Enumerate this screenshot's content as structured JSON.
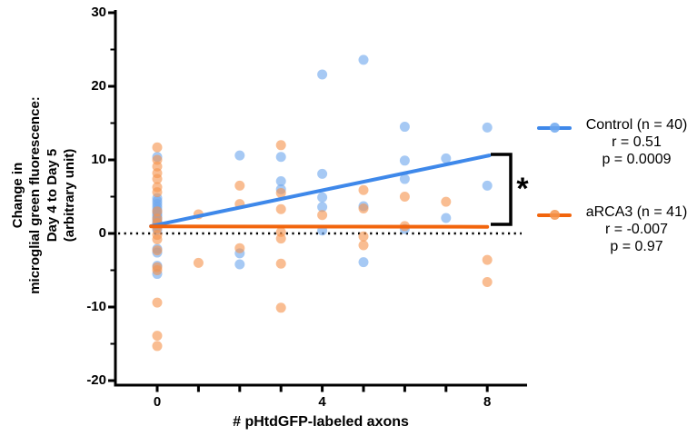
{
  "chart_data": {
    "type": "scatter",
    "title": "",
    "xlabel": "# pHtdGFP-labeled axons",
    "ylabel": "Change in microglial green fluorescence: Day 4 to Day 5 (arbitrary unit)",
    "ylabel_lines": [
      "Change in",
      "microglial green fluorescence:",
      "Day 4 to Day 5",
      "(arbitrary unit)"
    ],
    "xlim": [
      -1,
      9
    ],
    "ylim": [
      -20,
      30
    ],
    "grid": false,
    "legend_position": "right",
    "x_axis": {
      "tick_values": [
        0,
        1,
        2,
        3,
        4,
        5,
        6,
        7,
        8
      ],
      "labeled_ticks": [
        {
          "value": 0,
          "label": "0"
        },
        {
          "value": 4,
          "label": "4"
        },
        {
          "value": 8,
          "label": "8"
        }
      ]
    },
    "y_axis": {
      "major_ticks": [
        {
          "value": 30,
          "label": "30"
        },
        {
          "value": 20,
          "label": "20"
        },
        {
          "value": 10,
          "label": "10"
        },
        {
          "value": 0,
          "label": "0"
        },
        {
          "value": -10,
          "label": "-10"
        },
        {
          "value": -20,
          "label": "-20"
        }
      ],
      "minor_tick_values": [
        25,
        15,
        5,
        -5,
        -15
      ]
    },
    "zero_line": {
      "value": 0,
      "style": "dotted",
      "color": "#000000"
    },
    "series": [
      {
        "name": "Control (n = 40)",
        "stats_r": "r = 0.51",
        "stats_p": "p = 0.0009",
        "dot_color": "#6FA8EE",
        "line_color": "#3E88EA",
        "trend_line": {
          "x": [
            -0.15,
            8.05
          ],
          "y": [
            1.0,
            10.6
          ]
        },
        "points": [
          [
            0,
            10.4
          ],
          [
            0,
            4.8
          ],
          [
            0,
            4.4
          ],
          [
            0,
            4.0
          ],
          [
            0,
            3.6
          ],
          [
            0,
            3.2
          ],
          [
            0,
            2.9
          ],
          [
            0,
            2.6
          ],
          [
            0,
            2.3
          ],
          [
            0,
            2.0
          ],
          [
            0,
            1.7
          ],
          [
            0,
            1.4
          ],
          [
            0,
            1.0
          ],
          [
            0,
            0.5
          ],
          [
            0,
            -2.1
          ],
          [
            0,
            -2.6
          ],
          [
            0,
            -4.4
          ],
          [
            0,
            -5.5
          ],
          [
            2,
            10.6
          ],
          [
            2,
            -2.7
          ],
          [
            2,
            -4.2
          ],
          [
            3,
            10.4
          ],
          [
            3,
            7.1
          ],
          [
            3,
            6.0
          ],
          [
            4,
            21.6
          ],
          [
            4,
            8.1
          ],
          [
            4,
            4.9
          ],
          [
            4,
            3.6
          ],
          [
            4,
            0.4
          ],
          [
            5,
            23.6
          ],
          [
            5,
            3.7
          ],
          [
            5,
            -3.9
          ],
          [
            6,
            14.5
          ],
          [
            6,
            9.9
          ],
          [
            6,
            7.4
          ],
          [
            6,
            0.6
          ],
          [
            7,
            10.2
          ],
          [
            7,
            2.1
          ],
          [
            8,
            14.4
          ],
          [
            8,
            6.5
          ]
        ]
      },
      {
        "name": "aRCA3 (n = 41)",
        "stats_r": "r = -0.007",
        "stats_p": "p = 0.97",
        "dot_color": "#F5954F",
        "line_color": "#F2650D",
        "trend_line": {
          "x": [
            -0.15,
            8.0
          ],
          "y": [
            0.95,
            0.9
          ]
        },
        "points": [
          [
            0,
            11.7
          ],
          [
            0,
            10.0
          ],
          [
            0,
            9.1
          ],
          [
            0,
            8.2
          ],
          [
            0,
            7.4
          ],
          [
            0,
            6.3
          ],
          [
            0,
            5.6
          ],
          [
            0,
            3.0
          ],
          [
            0,
            2.0
          ],
          [
            0,
            1.4
          ],
          [
            0,
            0.7
          ],
          [
            0,
            -0.2
          ],
          [
            0,
            -0.8
          ],
          [
            0,
            -2.3
          ],
          [
            0,
            -4.6
          ],
          [
            0,
            -5.0
          ],
          [
            0,
            -9.4
          ],
          [
            0,
            -13.9
          ],
          [
            0,
            -15.3
          ],
          [
            1,
            2.6
          ],
          [
            1,
            -4.0
          ],
          [
            2,
            6.5
          ],
          [
            2,
            4.0
          ],
          [
            2,
            -2.0
          ],
          [
            3,
            12.0
          ],
          [
            3,
            5.5
          ],
          [
            3,
            3.3
          ],
          [
            3,
            0.2
          ],
          [
            3,
            -0.7
          ],
          [
            3,
            -4.1
          ],
          [
            3,
            -10.1
          ],
          [
            4,
            2.5
          ],
          [
            5,
            5.9
          ],
          [
            5,
            3.4
          ],
          [
            5,
            -0.4
          ],
          [
            5,
            -1.6
          ],
          [
            6,
            5.0
          ],
          [
            6,
            1.0
          ],
          [
            7,
            4.3
          ],
          [
            8,
            -3.6
          ],
          [
            8,
            -6.6
          ]
        ]
      }
    ],
    "significance": {
      "label": "*"
    }
  }
}
